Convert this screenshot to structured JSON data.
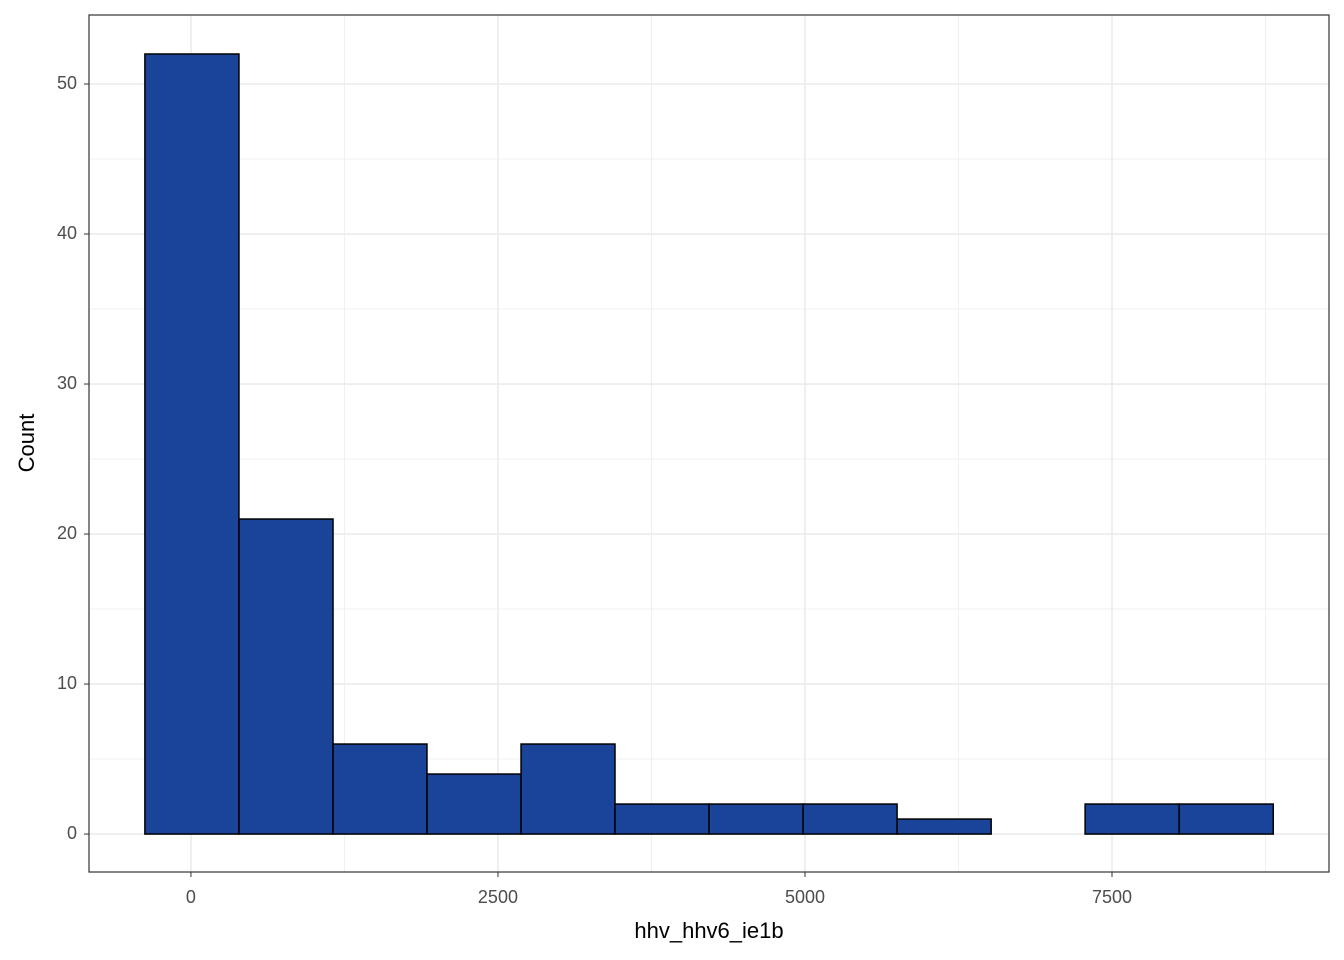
{
  "chart_data": {
    "type": "histogram",
    "x_label": "hhv_hhv6_ie1b",
    "y_label": "Count",
    "bins": [
      -375,
      391,
      1157,
      1922,
      2688,
      3453,
      4219,
      4985,
      5750,
      6516,
      7281,
      8047,
      8813
    ],
    "values": [
      52,
      21,
      6,
      4,
      6,
      2,
      2,
      2,
      1,
      0,
      2,
      2
    ],
    "color": "#1a4499",
    "edge_color": "#000000",
    "xlim": [
      -830,
      9267
    ],
    "xticks": [
      0,
      2500,
      5000,
      7500
    ],
    "ylim": [
      -2.53,
      54.6
    ],
    "yticks": [
      0,
      10,
      20,
      30,
      40,
      50
    ],
    "grid": true,
    "minor_grid": true
  }
}
